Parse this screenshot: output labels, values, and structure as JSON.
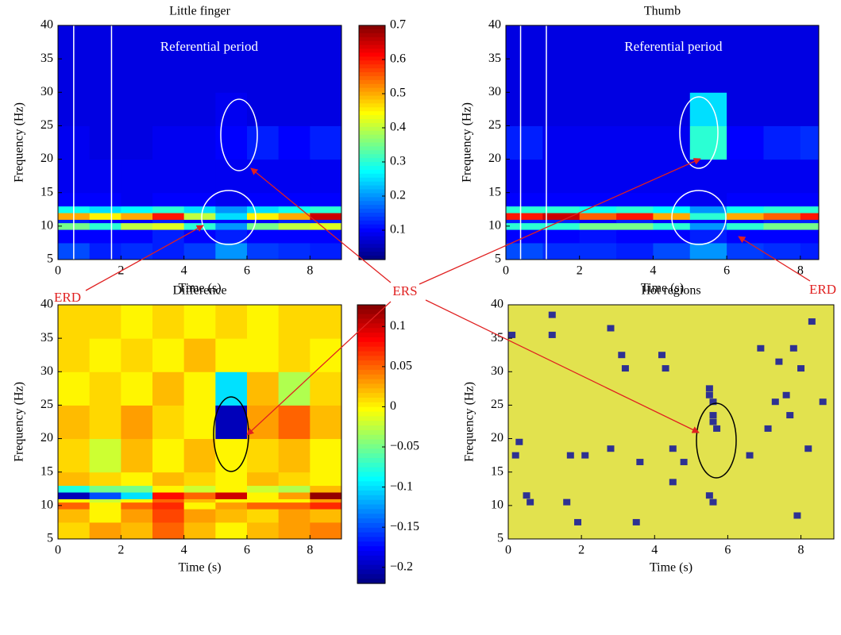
{
  "chart_data": [
    {
      "type": "heatmap",
      "title": "Little finger",
      "xlabel": "Time (s)",
      "ylabel": "Frequency (Hz)",
      "colormap": "jet",
      "annotation": "Referential period",
      "vlines": [
        0.5,
        1.7
      ],
      "xlim": [
        0,
        9
      ],
      "ylim": [
        5,
        40
      ],
      "xticks": [
        0,
        2,
        4,
        6,
        8
      ],
      "yticks": [
        5,
        10,
        15,
        20,
        25,
        30,
        35,
        40
      ],
      "x_edges": [
        0,
        1,
        2,
        3,
        4,
        5,
        6,
        7,
        8,
        9
      ],
      "y_edges": [
        5,
        7.5,
        9.5,
        10.5,
        11,
        12,
        13,
        15,
        20,
        25,
        30,
        35,
        40
      ],
      "z": [
        [
          0.15,
          0.12,
          0.13,
          0.12,
          0.14,
          0.2,
          0.14,
          0.13,
          0.12
        ],
        [
          0.1,
          0.1,
          0.1,
          0.12,
          0.1,
          0.12,
          0.1,
          0.1,
          0.1
        ],
        [
          0.35,
          0.3,
          0.4,
          0.42,
          0.3,
          0.2,
          0.35,
          0.4,
          0.42
        ],
        [
          0.12,
          0.1,
          0.1,
          0.12,
          0.1,
          0.1,
          0.1,
          0.12,
          0.12
        ],
        [
          0.5,
          0.45,
          0.5,
          0.6,
          0.4,
          0.25,
          0.45,
          0.5,
          0.65
        ],
        [
          0.28,
          0.25,
          0.27,
          0.3,
          0.25,
          0.2,
          0.25,
          0.28,
          0.3
        ],
        [
          0.1,
          0.1,
          0.09,
          0.1,
          0.1,
          0.09,
          0.1,
          0.1,
          0.1
        ],
        [
          0.09,
          0.09,
          0.09,
          0.09,
          0.09,
          0.09,
          0.09,
          0.09,
          0.09
        ],
        [
          0.09,
          0.08,
          0.08,
          0.09,
          0.09,
          0.1,
          0.12,
          0.1,
          0.12
        ],
        [
          0.08,
          0.08,
          0.08,
          0.08,
          0.08,
          0.09,
          0.08,
          0.08,
          0.08
        ],
        [
          0.08,
          0.08,
          0.08,
          0.08,
          0.08,
          0.08,
          0.08,
          0.08,
          0.08
        ],
        [
          0.08,
          0.08,
          0.08,
          0.08,
          0.08,
          0.08,
          0.08,
          0.08,
          0.08
        ]
      ],
      "clim": [
        0.014,
        0.7
      ],
      "cticks": [
        0.1,
        0.2,
        0.3,
        0.4,
        0.5,
        0.6,
        0.7
      ]
    },
    {
      "type": "heatmap",
      "title": "Thumb",
      "xlabel": "Time (s)",
      "ylabel": "Frequency (Hz)",
      "colormap": "jet",
      "annotation": "Referential period",
      "vlines": [
        0.4,
        1.1
      ],
      "xlim": [
        0,
        8.5
      ],
      "ylim": [
        5,
        40
      ],
      "xticks": [
        0,
        2,
        4,
        6,
        8
      ],
      "yticks": [
        5,
        10,
        15,
        20,
        25,
        30,
        35,
        40
      ],
      "x_edges": [
        0,
        1,
        2,
        3,
        4,
        5,
        6,
        7,
        8,
        8.5
      ],
      "y_edges": [
        5,
        7.5,
        9.5,
        10.5,
        11,
        12,
        13,
        15,
        20,
        25,
        30,
        35,
        40
      ],
      "z": [
        [
          0.15,
          0.13,
          0.13,
          0.12,
          0.15,
          0.2,
          0.14,
          0.13,
          0.12
        ],
        [
          0.1,
          0.1,
          0.11,
          0.1,
          0.1,
          0.12,
          0.1,
          0.1,
          0.1
        ],
        [
          0.3,
          0.3,
          0.35,
          0.35,
          0.3,
          0.2,
          0.3,
          0.35,
          0.35
        ],
        [
          0.12,
          0.12,
          0.1,
          0.12,
          0.1,
          0.1,
          0.1,
          0.12,
          0.12
        ],
        [
          0.6,
          0.65,
          0.55,
          0.6,
          0.5,
          0.3,
          0.5,
          0.55,
          0.6
        ],
        [
          0.3,
          0.3,
          0.28,
          0.3,
          0.27,
          0.2,
          0.28,
          0.3,
          0.3
        ],
        [
          0.1,
          0.1,
          0.1,
          0.1,
          0.1,
          0.09,
          0.1,
          0.1,
          0.1
        ],
        [
          0.09,
          0.09,
          0.09,
          0.09,
          0.09,
          0.09,
          0.09,
          0.09,
          0.09
        ],
        [
          0.12,
          0.09,
          0.09,
          0.09,
          0.09,
          0.3,
          0.1,
          0.12,
          0.13
        ],
        [
          0.08,
          0.08,
          0.08,
          0.08,
          0.08,
          0.25,
          0.08,
          0.08,
          0.08
        ],
        [
          0.08,
          0.08,
          0.08,
          0.08,
          0.08,
          0.08,
          0.08,
          0.08,
          0.08
        ],
        [
          0.08,
          0.08,
          0.08,
          0.08,
          0.08,
          0.08,
          0.08,
          0.08,
          0.08
        ]
      ]
    },
    {
      "type": "heatmap",
      "title": "Difference",
      "xlabel": "Time (s)",
      "ylabel": "Frequency (Hz)",
      "colormap": "jet",
      "xlim": [
        0,
        9
      ],
      "ylim": [
        5,
        40
      ],
      "xticks": [
        0,
        2,
        4,
        6,
        8
      ],
      "yticks": [
        5,
        10,
        15,
        20,
        25,
        30,
        35,
        40
      ],
      "x_edges": [
        0,
        1,
        2,
        3,
        4,
        5,
        6,
        7,
        8,
        9
      ],
      "y_edges": [
        5,
        7.5,
        9.5,
        10.5,
        11,
        12,
        13,
        15,
        20,
        25,
        30,
        35,
        40
      ],
      "z": [
        [
          0.01,
          0.03,
          0.02,
          0.05,
          0.02,
          0.0,
          0.02,
          0.03,
          0.04
        ],
        [
          0.02,
          0.0,
          0.03,
          0.06,
          0.03,
          0.02,
          0.01,
          0.03,
          0.02
        ],
        [
          0.05,
          0.0,
          0.05,
          0.07,
          0.0,
          0.03,
          0.05,
          0.05,
          0.07
        ],
        [
          0.0,
          -0.02,
          0.0,
          0.05,
          0.02,
          0.0,
          0.0,
          0.0,
          0.03
        ],
        [
          -0.2,
          -0.15,
          -0.1,
          0.08,
          0.05,
          0.1,
          0.0,
          0.03,
          0.12
        ],
        [
          -0.08,
          -0.05,
          -0.05,
          0.0,
          -0.02,
          0.0,
          -0.02,
          -0.03,
          0.02
        ],
        [
          0.02,
          0.01,
          0.0,
          0.02,
          0.01,
          0.0,
          0.02,
          0.01,
          0.0
        ],
        [
          0.01,
          -0.02,
          0.02,
          0.0,
          0.02,
          0.0,
          0.01,
          0.02,
          0.0
        ],
        [
          0.02,
          0.01,
          0.03,
          0.01,
          0.0,
          -0.2,
          0.03,
          0.05,
          0.02
        ],
        [
          0.0,
          0.01,
          0.0,
          0.02,
          0.0,
          -0.1,
          0.02,
          -0.03,
          0.01
        ],
        [
          0.01,
          0.0,
          0.01,
          0.0,
          0.02,
          0.0,
          0.0,
          0.01,
          0.0
        ],
        [
          0.01,
          0.01,
          0.0,
          0.01,
          0.0,
          0.01,
          0.0,
          0.01,
          0.01
        ]
      ],
      "clim": [
        -0.22,
        0.127
      ],
      "cticks": [
        {
          "value": -0.2,
          "label": "−0.2"
        },
        {
          "value": -0.15,
          "label": "−0.15"
        },
        {
          "value": -0.1,
          "label": "−0.1"
        },
        {
          "value": -0.05,
          "label": "−0.05"
        },
        0,
        0.05,
        0.1
      ]
    },
    {
      "type": "hotmap",
      "title": "Hot regions",
      "xlabel": "Time (s)",
      "ylabel": "Frequency (Hz)",
      "background": "#e2e24e",
      "color": "#2e3192",
      "xlim": [
        0,
        8.9
      ],
      "ylim": [
        5,
        40
      ],
      "xticks": [
        0,
        2,
        4,
        6,
        8
      ],
      "yticks": [
        5,
        10,
        15,
        20,
        25,
        30,
        35,
        40
      ],
      "x": [
        0.1,
        0.2,
        0.3,
        0.5,
        0.6,
        1.2,
        1.2,
        1.6,
        1.7,
        1.9,
        2.1,
        2.8,
        2.8,
        3.1,
        3.2,
        3.5,
        3.6,
        4.2,
        4.3,
        4.5,
        4.5,
        4.8,
        5.5,
        5.6,
        5.6,
        5.5,
        5.6,
        5.7,
        5.6,
        5.5,
        6.6,
        6.9,
        7.1,
        7.3,
        7.4,
        7.6,
        7.7,
        7.8,
        7.9,
        8.0,
        8.2,
        8.3,
        8.6
      ],
      "y": [
        35.5,
        17.5,
        19.5,
        11.5,
        10.5,
        38.5,
        35.5,
        10.5,
        17.5,
        7.5,
        17.5,
        36.5,
        18.5,
        32.5,
        30.5,
        7.5,
        16.5,
        32.5,
        30.5,
        18.5,
        13.5,
        16.5,
        27.5,
        25.5,
        22.5,
        11.5,
        10.5,
        21.5,
        23.5,
        26.5,
        17.5,
        33.5,
        21.5,
        25.5,
        31.5,
        26.5,
        23.5,
        33.5,
        8.5,
        30.5,
        18.5,
        37.5,
        25.5
      ]
    }
  ],
  "annotations": {
    "erd_left": "ERS",
    "ers": "ERS",
    "erd_right": "ERD",
    "erd": "ERD"
  }
}
